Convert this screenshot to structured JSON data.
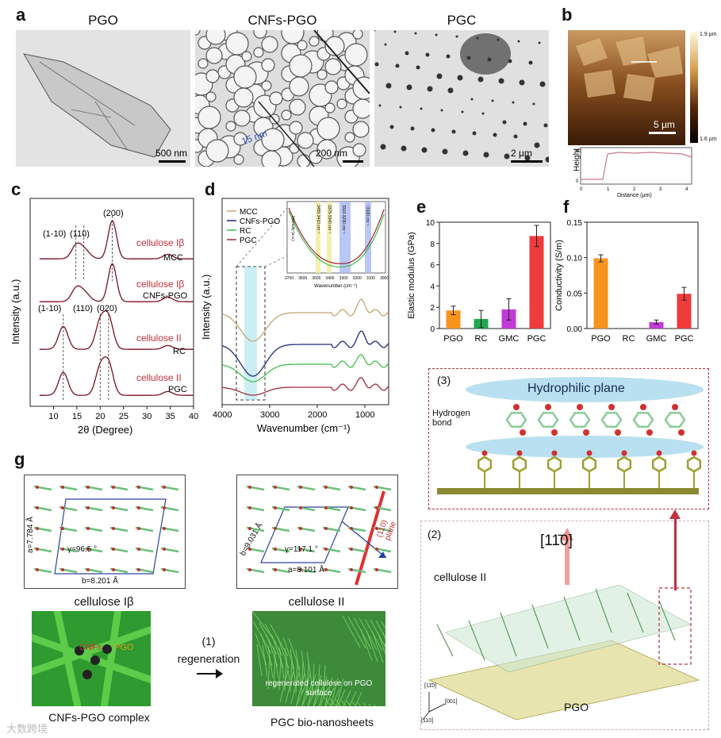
{
  "panels": {
    "a": "a",
    "b": "b",
    "c": "c",
    "d": "d",
    "e": "e",
    "f": "f",
    "g": "g"
  },
  "tem": {
    "titles": [
      "PGO",
      "CNFs-PGO",
      "PGC"
    ],
    "scales": [
      "500 nm",
      "200 nm",
      "2 µm"
    ],
    "inset_label": "15 nm"
  },
  "afm": {
    "scale": "5 µm",
    "cbar_max": "1.9 µm",
    "cbar_min": "1.6 µm",
    "profile_ylabel": "Height (nm)",
    "profile_xlabel": "Distance (µm)",
    "profile_yticks": [
      "0",
      "20",
      "40",
      "60"
    ],
    "profile_xticks": [
      "0",
      "1",
      "2",
      "3",
      "4"
    ]
  },
  "xrd": {
    "ylabel": "Intensity (a.u.)",
    "xlabel": "2θ (Degree)",
    "xticks": [
      "10",
      "15",
      "20",
      "25",
      "30",
      "35",
      "40"
    ],
    "curves": [
      {
        "phase": "cellulose Iβ",
        "name": "MCC"
      },
      {
        "phase": "cellulose Iβ",
        "name": "CNFs-PGO"
      },
      {
        "phase": "cellulose II",
        "name": "RC"
      },
      {
        "phase": "cellulose II",
        "name": "PGC"
      }
    ],
    "peaks_top": [
      "(1-10)",
      "(110)",
      "(200)"
    ],
    "peaks_bottom": [
      "(1-10)",
      "(110)",
      "(020)"
    ]
  },
  "ftir": {
    "ylabel": "Intensity (a.u.)",
    "xlabel": "Wavenumber (cm⁻¹)",
    "xticks": [
      "4000",
      "3000",
      "2000",
      "1000"
    ],
    "legend": [
      "MCC",
      "CNFs-PGO",
      "RC",
      "PGC"
    ],
    "legend_colors": [
      "#c8a46e",
      "#1e2b7a",
      "#3fbf4a",
      "#9e2a3a"
    ],
    "inset": {
      "ylabel": "Intensity (a.u.)",
      "xlabel": "Wavenumber (cm⁻¹)",
      "xticks": [
        "3700",
        "3600",
        "3500",
        "3400",
        "3300",
        "3200",
        "3100",
        "3000"
      ],
      "bands": [
        "3455-3410 cm⁻¹",
        "3375-3340 cm⁻¹",
        "3310-3230 cm⁻¹",
        "~3100 cm⁻¹"
      ]
    }
  },
  "chart_data": [
    {
      "type": "bar",
      "panel": "e",
      "ylabel": "Elastic modulus (GPa)",
      "categories": [
        "PGO",
        "RC",
        "GMC",
        "PGC"
      ],
      "values": [
        1.7,
        0.9,
        1.8,
        8.7
      ],
      "errors": [
        0.4,
        0.8,
        1.0,
        1.0
      ],
      "colors": [
        "#f7941d",
        "#1fa84f",
        "#c03bd8",
        "#ef3b3b"
      ],
      "ylim": [
        0,
        10
      ],
      "yticks": [
        "0",
        "2",
        "4",
        "6",
        "8",
        "10"
      ]
    },
    {
      "type": "bar",
      "panel": "f",
      "ylabel": "Conductivity (S/m)",
      "categories": [
        "PGO",
        "RC",
        "GMC",
        "PGC"
      ],
      "values": [
        0.099,
        0.0,
        0.009,
        0.049
      ],
      "errors": [
        0.005,
        0.0,
        0.003,
        0.009
      ],
      "colors": [
        "#f7941d",
        "#1fa84f",
        "#c03bd8",
        "#ef3b3b"
      ],
      "ylim": [
        0,
        0.15
      ],
      "yticks": [
        "0.00",
        "0.05",
        "0.10",
        "0.15"
      ]
    }
  ],
  "scheme3": {
    "num": "(3)",
    "plane": "Hydrophilic plane",
    "hbond": "Hydrogen bond"
  },
  "scheme2": {
    "num": "(2)",
    "direction": "[11̄0]",
    "cellulose": "cellulose II",
    "pgo": "PGO",
    "axes": [
      "[11̄0]",
      "[001]",
      "[110]"
    ]
  },
  "lattice": {
    "left": {
      "a": "a=7.784 Å",
      "b": "b=8.201 Å",
      "gamma": "γ=96.5 °"
    },
    "right": {
      "a": "a=8.101 Å",
      "b": "b=9.031 Å",
      "gamma": "γ=117.1 °",
      "plane": "(110) plane"
    }
  },
  "g": {
    "left_title": "cellulose Iβ",
    "right_title": "cellulose II",
    "step": "(1)",
    "step_label": "regeneration",
    "cnfs": "CNFs",
    "pgo": "PGO",
    "right_overlay": "regenerated cellulose on PGO surface",
    "left_caption": "CNFs-PGO complex",
    "right_caption": "PGC bio-nanosheets"
  },
  "watermark": "大数跨境"
}
